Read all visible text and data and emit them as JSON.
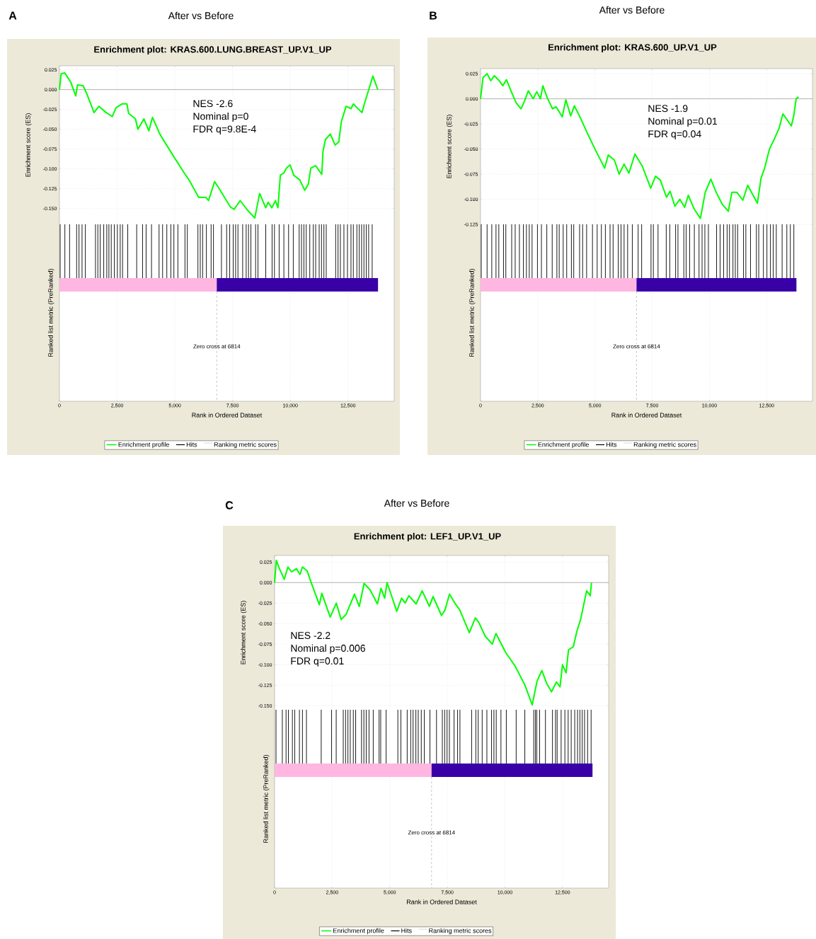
{
  "chart_data": [
    {
      "type": "line",
      "title": "After vs Before",
      "subtitle": "Enrichment plot: KRAS.600.LUNG.BREAST_UP.V1_UP",
      "ylabel": "Enrichment score (ES)",
      "xlabel": "Rank in Ordered Dataset",
      "annotations": [
        "A",
        "NES -2.6",
        "Nominal p=0",
        "FDR q=9.8E-4",
        "Ranked list metric (PreRanked)",
        "Hits",
        "Ranking metric scores"
      ],
      "series": [
        {
          "name": "Enrichment profile",
          "color": "#00ff00",
          "x": [
            0,
            74,
            232,
            496,
            707,
            781,
            1023,
            1182,
            1498,
            1709,
            2026,
            2289,
            2448,
            2711,
            2922,
            2996,
            3292,
            3397,
            3661,
            3872,
            4030,
            4347,
            4874,
            5402,
            5613,
            6035,
            6351,
            6457,
            6720,
            6879,
            7406,
            7564,
            7828,
            8145,
            8461,
            8672,
            8936,
            9041,
            9200,
            9358,
            9463,
            9569,
            9727,
            9833,
            9991,
            10150,
            10413,
            10624,
            10782,
            10888,
            11099,
            11363,
            11415,
            11521,
            11732,
            11943,
            12101,
            12206,
            12417,
            12628,
            12733,
            12892,
            13103,
            13208,
            13367,
            13577,
            13789
          ],
          "values": [
            0,
            0.02,
            0.021,
            0.009,
            -0.008,
            0.006,
            0.005,
            -0.005,
            -0.029,
            -0.021,
            -0.029,
            -0.034,
            -0.023,
            -0.018,
            -0.018,
            -0.03,
            -0.037,
            -0.05,
            -0.037,
            -0.052,
            -0.035,
            -0.056,
            -0.081,
            -0.105,
            -0.114,
            -0.136,
            -0.136,
            -0.14,
            -0.116,
            -0.123,
            -0.148,
            -0.151,
            -0.14,
            -0.152,
            -0.162,
            -0.131,
            -0.149,
            -0.142,
            -0.149,
            -0.14,
            -0.149,
            -0.108,
            -0.105,
            -0.099,
            -0.095,
            -0.108,
            -0.114,
            -0.127,
            -0.119,
            -0.099,
            -0.096,
            -0.107,
            -0.078,
            -0.063,
            -0.056,
            -0.07,
            -0.066,
            -0.041,
            -0.021,
            -0.024,
            -0.018,
            -0.023,
            -0.029,
            -0.018,
            -0.003,
            0.017,
            0
          ]
        }
      ],
      "xlim": [
        0,
        14500
      ],
      "ylim": [
        -0.393,
        0.03
      ],
      "xticks": [
        0,
        {
          "value": 2500,
          "label": "2,500"
        },
        {
          "value": 5000,
          "label": "5,000"
        },
        {
          "value": 7500,
          "label": "7,500"
        },
        {
          "value": 10000,
          "label": "10,000"
        },
        {
          "value": 12500,
          "label": "12,500"
        }
      ],
      "yticks": [
        {
          "value": 0.025,
          "label": "0.025"
        },
        {
          "value": 0,
          "label": "0.000"
        },
        {
          "value": -0.025,
          "label": "-0.025"
        },
        {
          "value": -0.05,
          "label": "-0.050"
        },
        {
          "value": -0.075,
          "label": "-0.075"
        },
        {
          "value": -0.1,
          "label": "-0.100"
        },
        {
          "value": -0.125,
          "label": "-0.125"
        },
        {
          "value": -0.15,
          "label": "-0.150"
        }
      ],
      "grid": true,
      "legend": "bottom",
      "bands": [
        {
          "axis": "x",
          "from": 0,
          "to": 6814,
          "color": "#ffb6e1"
        },
        {
          "axis": "x",
          "from": 6814,
          "to": 13800,
          "color": "#3a00a8"
        }
      ],
      "ref_lines": [
        {
          "axis": "y",
          "value": 0,
          "color": "#a0a0a0"
        },
        {
          "axis": "x",
          "value": 6814,
          "label": "Zero cross at 6814",
          "line_style": "dashed",
          "color": "#a0a0a0"
        },
        {
          "axis": "x",
          "value": 31,
          "color": "#000000"
        },
        {
          "axis": "x",
          "value": 235,
          "color": "#000000"
        },
        {
          "axis": "x",
          "value": 439,
          "color": "#000000"
        },
        {
          "axis": "x",
          "value": 745,
          "color": "#000000"
        },
        {
          "axis": "x",
          "value": 847,
          "color": "#000000"
        },
        {
          "axis": "x",
          "value": 979,
          "color": "#000000"
        },
        {
          "axis": "x",
          "value": 1122,
          "color": "#000000"
        },
        {
          "axis": "x",
          "value": 1561,
          "color": "#000000"
        },
        {
          "axis": "x",
          "value": 1663,
          "color": "#000000"
        },
        {
          "axis": "x",
          "value": 1765,
          "color": "#000000"
        },
        {
          "axis": "x",
          "value": 1918,
          "color": "#000000"
        },
        {
          "axis": "x",
          "value": 2050,
          "color": "#000000"
        },
        {
          "axis": "x",
          "value": 2142,
          "color": "#000000"
        },
        {
          "axis": "x",
          "value": 2244,
          "color": "#000000"
        },
        {
          "axis": "x",
          "value": 2377,
          "color": "#000000"
        },
        {
          "axis": "x",
          "value": 2509,
          "color": "#000000"
        },
        {
          "axis": "x",
          "value": 2632,
          "color": "#000000"
        },
        {
          "axis": "x",
          "value": 2734,
          "color": "#000000"
        },
        {
          "axis": "x",
          "value": 2958,
          "color": "#000000"
        },
        {
          "axis": "x",
          "value": 3346,
          "color": "#000000"
        },
        {
          "axis": "x",
          "value": 3601,
          "color": "#000000"
        },
        {
          "axis": "x",
          "value": 3754,
          "color": "#000000"
        },
        {
          "axis": "x",
          "value": 3988,
          "color": "#000000"
        },
        {
          "axis": "x",
          "value": 4315,
          "color": "#000000"
        },
        {
          "axis": "x",
          "value": 4468,
          "color": "#000000"
        },
        {
          "axis": "x",
          "value": 4651,
          "color": "#000000"
        },
        {
          "axis": "x",
          "value": 4825,
          "color": "#000000"
        },
        {
          "axis": "x",
          "value": 4957,
          "color": "#000000"
        },
        {
          "axis": "x",
          "value": 5131,
          "color": "#000000"
        },
        {
          "axis": "x",
          "value": 5437,
          "color": "#000000"
        },
        {
          "axis": "x",
          "value": 5539,
          "color": "#000000"
        },
        {
          "axis": "x",
          "value": 5998,
          "color": "#000000"
        },
        {
          "axis": "x",
          "value": 6100,
          "color": "#000000"
        },
        {
          "axis": "x",
          "value": 6202,
          "color": "#000000"
        },
        {
          "axis": "x",
          "value": 6365,
          "color": "#000000"
        },
        {
          "axis": "x",
          "value": 6569,
          "color": "#000000"
        },
        {
          "axis": "x",
          "value": 6671,
          "color": "#000000"
        },
        {
          "axis": "x",
          "value": 7018,
          "color": "#000000"
        },
        {
          "axis": "x",
          "value": 7242,
          "color": "#000000"
        },
        {
          "axis": "x",
          "value": 7375,
          "color": "#000000"
        },
        {
          "axis": "x",
          "value": 7528,
          "color": "#000000"
        },
        {
          "axis": "x",
          "value": 7630,
          "color": "#000000"
        },
        {
          "axis": "x",
          "value": 7732,
          "color": "#000000"
        },
        {
          "axis": "x",
          "value": 7936,
          "color": "#000000"
        },
        {
          "axis": "x",
          "value": 8089,
          "color": "#000000"
        },
        {
          "axis": "x",
          "value": 8191,
          "color": "#000000"
        },
        {
          "axis": "x",
          "value": 8293,
          "color": "#000000"
        },
        {
          "axis": "x",
          "value": 8497,
          "color": "#000000"
        },
        {
          "axis": "x",
          "value": 8599,
          "color": "#000000"
        },
        {
          "axis": "x",
          "value": 8936,
          "color": "#000000"
        },
        {
          "axis": "x",
          "value": 9211,
          "color": "#000000"
        },
        {
          "axis": "x",
          "value": 9313,
          "color": "#000000"
        },
        {
          "axis": "x",
          "value": 9517,
          "color": "#000000"
        },
        {
          "axis": "x",
          "value": 9721,
          "color": "#000000"
        },
        {
          "axis": "x",
          "value": 9925,
          "color": "#000000"
        },
        {
          "axis": "x",
          "value": 10129,
          "color": "#000000"
        },
        {
          "axis": "x",
          "value": 10384,
          "color": "#000000"
        },
        {
          "axis": "x",
          "value": 10486,
          "color": "#000000"
        },
        {
          "axis": "x",
          "value": 10588,
          "color": "#000000"
        },
        {
          "axis": "x",
          "value": 10690,
          "color": "#000000"
        },
        {
          "axis": "x",
          "value": 10843,
          "color": "#000000"
        },
        {
          "axis": "x",
          "value": 10996,
          "color": "#000000"
        },
        {
          "axis": "x",
          "value": 11098,
          "color": "#000000"
        },
        {
          "axis": "x",
          "value": 11251,
          "color": "#000000"
        },
        {
          "axis": "x",
          "value": 11353,
          "color": "#000000"
        },
        {
          "axis": "x",
          "value": 11455,
          "color": "#000000"
        },
        {
          "axis": "x",
          "value": 11557,
          "color": "#000000"
        },
        {
          "axis": "x",
          "value": 11965,
          "color": "#000000"
        },
        {
          "axis": "x",
          "value": 12067,
          "color": "#000000"
        },
        {
          "axis": "x",
          "value": 12169,
          "color": "#000000"
        },
        {
          "axis": "x",
          "value": 12322,
          "color": "#000000"
        },
        {
          "axis": "x",
          "value": 12475,
          "color": "#000000"
        },
        {
          "axis": "x",
          "value": 12628,
          "color": "#000000"
        },
        {
          "axis": "x",
          "value": 12730,
          "color": "#000000"
        },
        {
          "axis": "x",
          "value": 12883,
          "color": "#000000"
        },
        {
          "axis": "x",
          "value": 12985,
          "color": "#000000"
        },
        {
          "axis": "x",
          "value": 13087,
          "color": "#000000"
        },
        {
          "axis": "x",
          "value": 13189,
          "color": "#000000"
        },
        {
          "axis": "x",
          "value": 13291,
          "color": "#000000"
        },
        {
          "axis": "x",
          "value": 13393,
          "color": "#000000"
        },
        {
          "axis": "x",
          "value": 13546,
          "color": "#000000"
        }
      ]
    },
    {
      "type": "line",
      "title": "After vs Before",
      "subtitle": "Enrichment plot: KRAS.600_UP.V1_UP",
      "ylabel": "Enrichment score (ES)",
      "xlabel": "Rank in Ordered Dataset",
      "annotations": [
        "B",
        "NES -1.9",
        "Nominal p=0.01",
        "FDR q=0.04",
        "Ranked list metric (PreRanked)",
        "Hits",
        "Ranking metric scores"
      ],
      "series": [
        {
          "name": "Enrichment profile",
          "color": "#00ff00",
          "x": [
            0,
            106,
            286,
            445,
            604,
            815,
            974,
            1133,
            1345,
            1557,
            1769,
            1927,
            2086,
            2298,
            2457,
            2616,
            2722,
            2933,
            3145,
            3304,
            3569,
            3728,
            3939,
            4098,
            4363,
            4681,
            4998,
            5422,
            5581,
            5846,
            6057,
            6269,
            6481,
            6746,
            7064,
            7434,
            7646,
            7858,
            8123,
            8281,
            8493,
            8705,
            8917,
            9076,
            9340,
            9605,
            9817,
            10061,
            10293,
            10558,
            10823,
            10982,
            11194,
            11458,
            11670,
            11882,
            12094,
            12253,
            12411,
            12623,
            12835,
            13047,
            13206,
            13365,
            13577,
            13682,
            13788,
            13894
          ],
          "values": [
            0,
            0.021,
            0.025,
            0.018,
            0.023,
            0.018,
            0.013,
            0.019,
            0.007,
            -0.004,
            -0.01,
            -0.002,
            0.008,
            0,
            0.007,
            0,
            0.013,
            0,
            -0.01,
            -0.008,
            -0.018,
            -0.001,
            -0.017,
            -0.007,
            -0.019,
            -0.035,
            -0.05,
            -0.069,
            -0.056,
            -0.061,
            -0.075,
            -0.065,
            -0.074,
            -0.055,
            -0.067,
            -0.089,
            -0.077,
            -0.081,
            -0.098,
            -0.092,
            -0.107,
            -0.1,
            -0.108,
            -0.096,
            -0.11,
            -0.119,
            -0.093,
            -0.08,
            -0.093,
            -0.105,
            -0.112,
            -0.093,
            -0.093,
            -0.101,
            -0.086,
            -0.095,
            -0.104,
            -0.079,
            -0.069,
            -0.05,
            -0.04,
            -0.029,
            -0.015,
            -0.02,
            -0.027,
            -0.017,
            0,
            0.002
          ]
        }
      ],
      "xlim": [
        0,
        14500
      ],
      "ylim": [
        -0.301,
        0.03
      ],
      "xticks": [
        0,
        {
          "value": 2500,
          "label": "2,500"
        },
        {
          "value": 5000,
          "label": "5,000"
        },
        {
          "value": 7500,
          "label": "7,500"
        },
        {
          "value": 10000,
          "label": "10,000"
        },
        {
          "value": 12500,
          "label": "12,500"
        }
      ],
      "yticks": [
        {
          "value": 0.025,
          "label": "0.025"
        },
        {
          "value": 0,
          "label": "0.000"
        },
        {
          "value": -0.025,
          "label": "-0.025"
        },
        {
          "value": -0.05,
          "label": "-0.050"
        },
        {
          "value": -0.075,
          "label": "-0.075"
        },
        {
          "value": -0.1,
          "label": "-0.100"
        },
        {
          "value": -0.125,
          "label": "-0.125"
        }
      ],
      "grid": true,
      "legend": "bottom",
      "bands": [
        {
          "axis": "x",
          "from": 0,
          "to": 6814,
          "color": "#ffb6e1"
        },
        {
          "axis": "x",
          "from": 6814,
          "to": 13800,
          "color": "#3a00a8"
        }
      ],
      "ref_lines": [
        {
          "axis": "y",
          "value": 0,
          "color": "#a0a0a0"
        },
        {
          "axis": "x",
          "value": 6814,
          "label": "Zero cross at 6814",
          "line_style": "dashed",
          "color": "#a0a0a0"
        },
        {
          "axis": "x",
          "value": 31,
          "color": "#000000"
        },
        {
          "axis": "x",
          "value": 286,
          "color": "#000000"
        },
        {
          "axis": "x",
          "value": 491,
          "color": "#000000"
        },
        {
          "axis": "x",
          "value": 675,
          "color": "#000000"
        },
        {
          "axis": "x",
          "value": 798,
          "color": "#000000"
        },
        {
          "axis": "x",
          "value": 1003,
          "color": "#000000"
        },
        {
          "axis": "x",
          "value": 1105,
          "color": "#000000"
        },
        {
          "axis": "x",
          "value": 1361,
          "color": "#000000"
        },
        {
          "axis": "x",
          "value": 1514,
          "color": "#000000"
        },
        {
          "axis": "x",
          "value": 1698,
          "color": "#000000"
        },
        {
          "axis": "x",
          "value": 1872,
          "color": "#000000"
        },
        {
          "axis": "x",
          "value": 2005,
          "color": "#000000"
        },
        {
          "axis": "x",
          "value": 2128,
          "color": "#000000"
        },
        {
          "axis": "x",
          "value": 2251,
          "color": "#000000"
        },
        {
          "axis": "x",
          "value": 2486,
          "color": "#000000"
        },
        {
          "axis": "x",
          "value": 2660,
          "color": "#000000"
        },
        {
          "axis": "x",
          "value": 2895,
          "color": "#000000"
        },
        {
          "axis": "x",
          "value": 3130,
          "color": "#000000"
        },
        {
          "axis": "x",
          "value": 3335,
          "color": "#000000"
        },
        {
          "axis": "x",
          "value": 3437,
          "color": "#000000"
        },
        {
          "axis": "x",
          "value": 3611,
          "color": "#000000"
        },
        {
          "axis": "x",
          "value": 3764,
          "color": "#000000"
        },
        {
          "axis": "x",
          "value": 3969,
          "color": "#000000"
        },
        {
          "axis": "x",
          "value": 4071,
          "color": "#000000"
        },
        {
          "axis": "x",
          "value": 4327,
          "color": "#000000"
        },
        {
          "axis": "x",
          "value": 4460,
          "color": "#000000"
        },
        {
          "axis": "x",
          "value": 4634,
          "color": "#000000"
        },
        {
          "axis": "x",
          "value": 4890,
          "color": "#000000"
        },
        {
          "axis": "x",
          "value": 5095,
          "color": "#000000"
        },
        {
          "axis": "x",
          "value": 5279,
          "color": "#000000"
        },
        {
          "axis": "x",
          "value": 5453,
          "color": "#000000"
        },
        {
          "axis": "x",
          "value": 5658,
          "color": "#000000"
        },
        {
          "axis": "x",
          "value": 5791,
          "color": "#000000"
        },
        {
          "axis": "x",
          "value": 6016,
          "color": "#000000"
        },
        {
          "axis": "x",
          "value": 6138,
          "color": "#000000"
        },
        {
          "axis": "x",
          "value": 6271,
          "color": "#000000"
        },
        {
          "axis": "x",
          "value": 6425,
          "color": "#000000"
        },
        {
          "axis": "x",
          "value": 6630,
          "color": "#000000"
        },
        {
          "axis": "x",
          "value": 6885,
          "color": "#000000"
        },
        {
          "axis": "x",
          "value": 7038,
          "color": "#000000"
        },
        {
          "axis": "x",
          "value": 7447,
          "color": "#000000"
        },
        {
          "axis": "x",
          "value": 7550,
          "color": "#000000"
        },
        {
          "axis": "x",
          "value": 7754,
          "color": "#000000"
        },
        {
          "axis": "x",
          "value": 8112,
          "color": "#000000"
        },
        {
          "axis": "x",
          "value": 8266,
          "color": "#000000"
        },
        {
          "axis": "x",
          "value": 8521,
          "color": "#000000"
        },
        {
          "axis": "x",
          "value": 8624,
          "color": "#000000"
        },
        {
          "axis": "x",
          "value": 8880,
          "color": "#000000"
        },
        {
          "axis": "x",
          "value": 8982,
          "color": "#000000"
        },
        {
          "axis": "x",
          "value": 9135,
          "color": "#000000"
        },
        {
          "axis": "x",
          "value": 9340,
          "color": "#000000"
        },
        {
          "axis": "x",
          "value": 9545,
          "color": "#000000"
        },
        {
          "axis": "x",
          "value": 9678,
          "color": "#000000"
        },
        {
          "axis": "x",
          "value": 9800,
          "color": "#000000"
        },
        {
          "axis": "x",
          "value": 9954,
          "color": "#000000"
        },
        {
          "axis": "x",
          "value": 10312,
          "color": "#000000"
        },
        {
          "axis": "x",
          "value": 10465,
          "color": "#000000"
        },
        {
          "axis": "x",
          "value": 10619,
          "color": "#000000"
        },
        {
          "axis": "x",
          "value": 10772,
          "color": "#000000"
        },
        {
          "axis": "x",
          "value": 10874,
          "color": "#000000"
        },
        {
          "axis": "x",
          "value": 11027,
          "color": "#000000"
        },
        {
          "axis": "x",
          "value": 11130,
          "color": "#000000"
        },
        {
          "axis": "x",
          "value": 11232,
          "color": "#000000"
        },
        {
          "axis": "x",
          "value": 11488,
          "color": "#000000"
        },
        {
          "axis": "x",
          "value": 11590,
          "color": "#000000"
        },
        {
          "axis": "x",
          "value": 11794,
          "color": "#000000"
        },
        {
          "axis": "x",
          "value": 12050,
          "color": "#000000"
        },
        {
          "axis": "x",
          "value": 12153,
          "color": "#000000"
        },
        {
          "axis": "x",
          "value": 12357,
          "color": "#000000"
        },
        {
          "axis": "x",
          "value": 12511,
          "color": "#000000"
        },
        {
          "axis": "x",
          "value": 12664,
          "color": "#000000"
        },
        {
          "axis": "x",
          "value": 12787,
          "color": "#000000"
        },
        {
          "axis": "x",
          "value": 12920,
          "color": "#000000"
        },
        {
          "axis": "x",
          "value": 13175,
          "color": "#000000"
        },
        {
          "axis": "x",
          "value": 13380,
          "color": "#000000"
        },
        {
          "axis": "x",
          "value": 13533,
          "color": "#000000"
        },
        {
          "axis": "x",
          "value": 13687,
          "color": "#000000"
        }
      ]
    },
    {
      "type": "line",
      "title": "After vs Before",
      "subtitle": "Enrichment plot: LEF1_UP.V1_UP",
      "ylabel": "Enrichment score (ES)",
      "xlabel": "Rank in Ordered Dataset",
      "annotations": [
        "C",
        "NES -2.2",
        "Nominal p=0.006",
        "FDR q=0.01",
        "Ranked list metric (PreRanked)",
        "Hits",
        "Ranking metric scores"
      ],
      "series": [
        {
          "name": "Enrichment profile",
          "color": "#00ff00",
          "x": [
            0,
            74,
            210,
            420,
            578,
            735,
            945,
            1103,
            1208,
            1418,
            1575,
            1943,
            2048,
            2415,
            2678,
            2888,
            3098,
            3308,
            3465,
            3675,
            3885,
            4148,
            4463,
            4620,
            4778,
            4883,
            5303,
            5513,
            5670,
            5828,
            6143,
            6405,
            6720,
            6878,
            7245,
            7403,
            7592,
            7823,
            8033,
            8453,
            8715,
            8873,
            9135,
            9450,
            9608,
            10028,
            10448,
            10868,
            11183,
            11393,
            11603,
            11813,
            12023,
            12233,
            12390,
            12495,
            12653,
            12758,
            12968,
            13125,
            13283,
            13545,
            13703,
            13755
          ],
          "values": [
            0,
            0.027,
            0.017,
            0.004,
            0.019,
            0.013,
            0.017,
            0.01,
            0.019,
            0.014,
            0.001,
            -0.027,
            -0.013,
            -0.042,
            -0.025,
            -0.045,
            -0.039,
            -0.025,
            -0.014,
            -0.029,
            -0.001,
            -0.009,
            -0.026,
            -0.007,
            -0.019,
            0,
            -0.035,
            -0.019,
            -0.025,
            -0.016,
            -0.026,
            -0.01,
            -0.029,
            -0.017,
            -0.04,
            -0.033,
            -0.014,
            -0.025,
            -0.033,
            -0.061,
            -0.043,
            -0.049,
            -0.065,
            -0.075,
            -0.062,
            -0.085,
            -0.102,
            -0.125,
            -0.149,
            -0.12,
            -0.107,
            -0.123,
            -0.133,
            -0.121,
            -0.127,
            -0.1,
            -0.11,
            -0.082,
            -0.078,
            -0.059,
            -0.045,
            -0.01,
            -0.016,
            0
          ]
        }
      ],
      "xlim": [
        0,
        14500
      ],
      "ylim": [
        -0.372,
        0.033
      ],
      "xticks": [
        0,
        {
          "value": 2500,
          "label": "2,500"
        },
        {
          "value": 5000,
          "label": "5,000"
        },
        {
          "value": 7500,
          "label": "7,500"
        },
        {
          "value": 10000,
          "label": "10,000"
        },
        {
          "value": 12500,
          "label": "12,500"
        }
      ],
      "yticks": [
        {
          "value": 0.025,
          "label": "0.025"
        },
        {
          "value": 0,
          "label": "0.000"
        },
        {
          "value": -0.025,
          "label": "-0.025"
        },
        {
          "value": -0.05,
          "label": "-0.050"
        },
        {
          "value": -0.075,
          "label": "-0.075"
        },
        {
          "value": -0.1,
          "label": "-0.100"
        },
        {
          "value": -0.125,
          "label": "-0.125"
        },
        {
          "value": -0.15,
          "label": "-0.150"
        }
      ],
      "grid": true,
      "legend": "bottom",
      "bands": [
        {
          "axis": "x",
          "from": 0,
          "to": 6814,
          "color": "#ffb6e1"
        },
        {
          "axis": "x",
          "from": 6814,
          "to": 13800,
          "color": "#3a00a8"
        }
      ],
      "ref_lines": [
        {
          "axis": "y",
          "value": 0,
          "color": "#a0a0a0"
        },
        {
          "axis": "x",
          "value": 6814,
          "label": "Zero cross at 6814",
          "line_style": "dashed",
          "color": "#a0a0a0"
        },
        {
          "axis": "x",
          "value": 61,
          "color": "#000000"
        },
        {
          "axis": "x",
          "value": 336,
          "color": "#000000"
        },
        {
          "axis": "x",
          "value": 498,
          "color": "#000000"
        },
        {
          "axis": "x",
          "value": 600,
          "color": "#000000"
        },
        {
          "axis": "x",
          "value": 773,
          "color": "#000000"
        },
        {
          "axis": "x",
          "value": 875,
          "color": "#000000"
        },
        {
          "axis": "x",
          "value": 1078,
          "color": "#000000"
        },
        {
          "axis": "x",
          "value": 1210,
          "color": "#000000"
        },
        {
          "axis": "x",
          "value": 1383,
          "color": "#000000"
        },
        {
          "axis": "x",
          "value": 2024,
          "color": "#000000"
        },
        {
          "axis": "x",
          "value": 2472,
          "color": "#000000"
        },
        {
          "axis": "x",
          "value": 2675,
          "color": "#000000"
        },
        {
          "axis": "x",
          "value": 2980,
          "color": "#000000"
        },
        {
          "axis": "x",
          "value": 3082,
          "color": "#000000"
        },
        {
          "axis": "x",
          "value": 3183,
          "color": "#000000"
        },
        {
          "axis": "x",
          "value": 3285,
          "color": "#000000"
        },
        {
          "axis": "x",
          "value": 3417,
          "color": "#000000"
        },
        {
          "axis": "x",
          "value": 3519,
          "color": "#000000"
        },
        {
          "axis": "x",
          "value": 3773,
          "color": "#000000"
        },
        {
          "axis": "x",
          "value": 3875,
          "color": "#000000"
        },
        {
          "axis": "x",
          "value": 3977,
          "color": "#000000"
        },
        {
          "axis": "x",
          "value": 4099,
          "color": "#000000"
        },
        {
          "axis": "x",
          "value": 4282,
          "color": "#000000"
        },
        {
          "axis": "x",
          "value": 4536,
          "color": "#000000"
        },
        {
          "axis": "x",
          "value": 4607,
          "color": "#000000"
        },
        {
          "axis": "x",
          "value": 4841,
          "color": "#000000"
        },
        {
          "axis": "x",
          "value": 5350,
          "color": "#000000"
        },
        {
          "axis": "x",
          "value": 5482,
          "color": "#000000"
        },
        {
          "axis": "x",
          "value": 5756,
          "color": "#000000"
        },
        {
          "axis": "x",
          "value": 5909,
          "color": "#000000"
        },
        {
          "axis": "x",
          "value": 6011,
          "color": "#000000"
        },
        {
          "axis": "x",
          "value": 6133,
          "color": "#000000"
        },
        {
          "axis": "x",
          "value": 6235,
          "color": "#000000"
        },
        {
          "axis": "x",
          "value": 6367,
          "color": "#000000"
        },
        {
          "axis": "x",
          "value": 6499,
          "color": "#000000"
        },
        {
          "axis": "x",
          "value": 6743,
          "color": "#000000"
        },
        {
          "axis": "x",
          "value": 7028,
          "color": "#000000"
        },
        {
          "axis": "x",
          "value": 7282,
          "color": "#000000"
        },
        {
          "axis": "x",
          "value": 7384,
          "color": "#000000"
        },
        {
          "axis": "x",
          "value": 7486,
          "color": "#000000"
        },
        {
          "axis": "x",
          "value": 7587,
          "color": "#000000"
        },
        {
          "axis": "x",
          "value": 7791,
          "color": "#000000"
        },
        {
          "axis": "x",
          "value": 7943,
          "color": "#000000"
        },
        {
          "axis": "x",
          "value": 8045,
          "color": "#000000"
        },
        {
          "axis": "x",
          "value": 8553,
          "color": "#000000"
        },
        {
          "axis": "x",
          "value": 8736,
          "color": "#000000"
        },
        {
          "axis": "x",
          "value": 8838,
          "color": "#000000"
        },
        {
          "axis": "x",
          "value": 9011,
          "color": "#000000"
        },
        {
          "axis": "x",
          "value": 9215,
          "color": "#000000"
        },
        {
          "axis": "x",
          "value": 9418,
          "color": "#000000"
        },
        {
          "axis": "x",
          "value": 9520,
          "color": "#000000"
        },
        {
          "axis": "x",
          "value": 9621,
          "color": "#000000"
        },
        {
          "axis": "x",
          "value": 9825,
          "color": "#000000"
        },
        {
          "axis": "x",
          "value": 10059,
          "color": "#000000"
        },
        {
          "axis": "x",
          "value": 10486,
          "color": "#000000"
        },
        {
          "axis": "x",
          "value": 10862,
          "color": "#000000"
        },
        {
          "axis": "x",
          "value": 11249,
          "color": "#000000"
        },
        {
          "axis": "x",
          "value": 11320,
          "color": "#000000"
        },
        {
          "axis": "x",
          "value": 11381,
          "color": "#000000"
        },
        {
          "axis": "x",
          "value": 11503,
          "color": "#000000"
        },
        {
          "axis": "x",
          "value": 11757,
          "color": "#000000"
        },
        {
          "axis": "x",
          "value": 12062,
          "color": "#000000"
        },
        {
          "axis": "x",
          "value": 12194,
          "color": "#000000"
        },
        {
          "axis": "x",
          "value": 12265,
          "color": "#000000"
        },
        {
          "axis": "x",
          "value": 12438,
          "color": "#000000"
        },
        {
          "axis": "x",
          "value": 12601,
          "color": "#000000"
        },
        {
          "axis": "x",
          "value": 12743,
          "color": "#000000"
        },
        {
          "axis": "x",
          "value": 12875,
          "color": "#000000"
        },
        {
          "axis": "x",
          "value": 13028,
          "color": "#000000"
        },
        {
          "axis": "x",
          "value": 13150,
          "color": "#000000"
        },
        {
          "axis": "x",
          "value": 13252,
          "color": "#000000"
        },
        {
          "axis": "x",
          "value": 13353,
          "color": "#000000"
        },
        {
          "axis": "x",
          "value": 13455,
          "color": "#000000"
        },
        {
          "axis": "x",
          "value": 13587,
          "color": "#000000"
        },
        {
          "axis": "x",
          "value": 13739,
          "color": "#000000"
        }
      ]
    }
  ]
}
